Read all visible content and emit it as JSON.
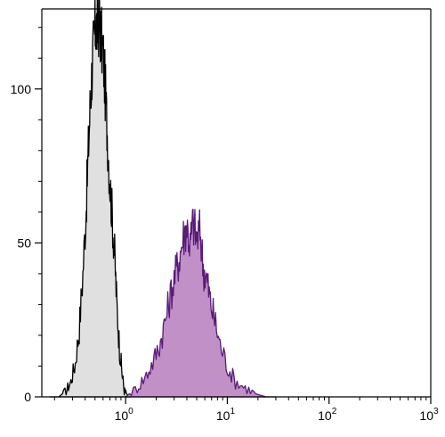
{
  "chart_data": {
    "type": "area",
    "title": "",
    "xlabel": "",
    "ylabel": "",
    "x_scale": "log",
    "xlim": [
      0.15,
      1000
    ],
    "ylim": [
      0,
      126
    ],
    "grid": false,
    "y_ticks": [
      {
        "value": 0,
        "label": "0"
      },
      {
        "value": 50,
        "label": "50"
      },
      {
        "value": 100,
        "label": "100"
      }
    ],
    "y_minor_ticks": [
      10,
      20,
      30,
      40,
      60,
      70,
      80,
      90,
      110,
      120
    ],
    "x_ticks": [
      {
        "value": 1,
        "base": "10",
        "exp": "0"
      },
      {
        "value": 10,
        "base": "10",
        "exp": "1"
      },
      {
        "value": 100,
        "base": "10",
        "exp": "2"
      },
      {
        "value": 1000,
        "base": "10",
        "exp": "3"
      }
    ],
    "series": [
      {
        "fill": "#e0e0e0",
        "stroke": "#000000",
        "x": [
          0.18,
          0.22,
          0.26,
          0.29,
          0.32,
          0.35,
          0.38,
          0.41,
          0.43,
          0.45,
          0.47,
          0.49,
          0.51,
          0.53,
          0.55,
          0.57,
          0.6,
          0.63,
          0.66,
          0.7,
          0.74,
          0.78,
          0.82,
          0.87,
          0.92,
          0.97,
          1.02,
          1.1
        ],
        "y": [
          0,
          0,
          2,
          5,
          11,
          22,
          40,
          62,
          80,
          96,
          108,
          116,
          121,
          119,
          123,
          117,
          112,
          100,
          86,
          70,
          58,
          46,
          30,
          16,
          8,
          2,
          1,
          0
        ]
      },
      {
        "fill": "#c090c6",
        "stroke": "#5a1a7a",
        "x": [
          1.0,
          1.3,
          1.6,
          1.9,
          2.2,
          2.5,
          2.8,
          3.1,
          3.4,
          3.7,
          4.0,
          4.3,
          4.6,
          5.0,
          5.4,
          5.8,
          6.3,
          6.8,
          7.5,
          8.5,
          10,
          12,
          15,
          19,
          24,
          30
        ],
        "y": [
          0,
          3,
          7,
          12,
          18,
          26,
          34,
          40,
          46,
          52,
          56,
          49,
          57,
          51,
          54,
          42,
          38,
          31,
          25,
          17,
          10,
          5,
          3,
          1,
          0,
          0
        ]
      }
    ]
  }
}
